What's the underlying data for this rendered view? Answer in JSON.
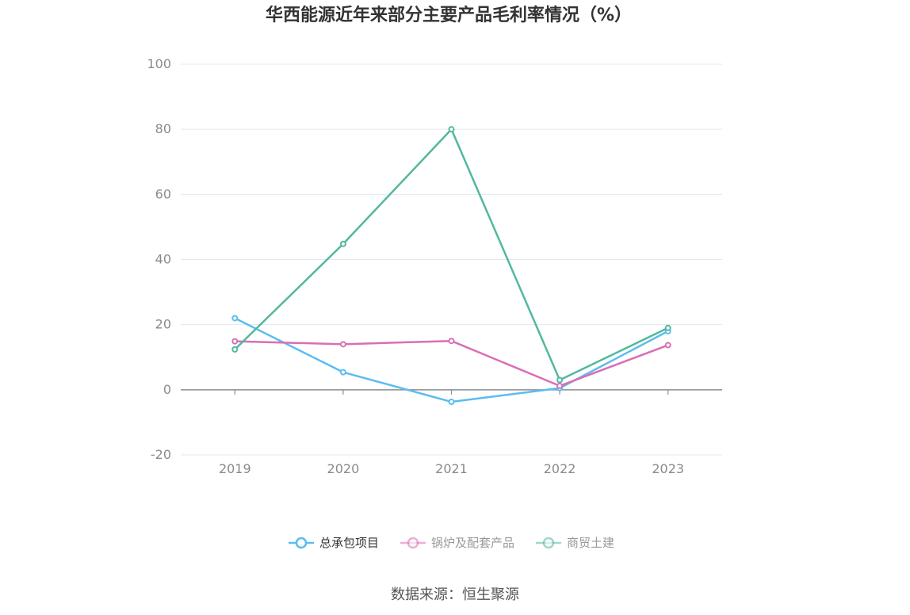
{
  "chart_data": {
    "type": "line",
    "title": "华西能源近年来部分主要产品毛利率情况（%）",
    "source": "数据来源：恒生聚源",
    "categories": [
      "2019",
      "2020",
      "2021",
      "2022",
      "2023"
    ],
    "ylim": [
      -20,
      100
    ],
    "yticks": [
      100,
      80,
      60,
      40,
      20,
      0,
      -20
    ],
    "grid": true,
    "legend_position": "bottom",
    "series": [
      {
        "name": "总承包项目",
        "color": "#5bbdf0",
        "values": [
          22.0,
          5.4,
          -3.7,
          0.5,
          18.0
        ]
      },
      {
        "name": "锅炉及配套产品",
        "color": "#d96fb4",
        "values": [
          14.9,
          14.0,
          15.0,
          1.2,
          13.7
        ]
      },
      {
        "name": "商贸土建",
        "color": "#52b8a0",
        "values": [
          12.4,
          44.8,
          80.0,
          3.0,
          19.0
        ]
      }
    ]
  }
}
